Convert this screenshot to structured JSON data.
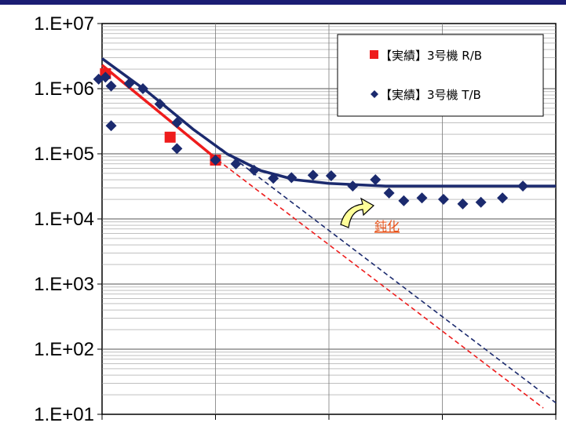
{
  "chart_data": {
    "type": "scatter",
    "title": "",
    "xlabel": "",
    "ylabel": "",
    "yscale": "log",
    "ylim": [
      10,
      10000000
    ],
    "xlim": [
      0,
      40
    ],
    "grid": true,
    "legend_position": "top-right",
    "y_tick_labels": [
      "1.E+07",
      "1.E+06",
      "1.E+05",
      "1.E+04",
      "1.E+03",
      "1.E+02",
      "1.E+01"
    ],
    "series": [
      {
        "name": "【実績】3号機 R/B",
        "marker": "square",
        "color": "#ee1c1c",
        "points": [
          {
            "x": 0.3,
            "y": 1700000
          },
          {
            "x": 6,
            "y": 180000
          },
          {
            "x": 10,
            "y": 80000
          }
        ]
      },
      {
        "name": "【実績】3号機 T/B",
        "marker": "diamond",
        "color": "#1b2a6e",
        "points": [
          {
            "x": -0.3,
            "y": 1400000
          },
          {
            "x": 0.3,
            "y": 1500000
          },
          {
            "x": 0.8,
            "y": 1100000
          },
          {
            "x": 0.8,
            "y": 270000
          },
          {
            "x": 2.4,
            "y": 1200000
          },
          {
            "x": 3.6,
            "y": 1000000
          },
          {
            "x": 5.1,
            "y": 580000
          },
          {
            "x": 6.6,
            "y": 300000
          },
          {
            "x": 6.6,
            "y": 120000
          },
          {
            "x": 10.0,
            "y": 80000
          },
          {
            "x": 11.8,
            "y": 70000
          },
          {
            "x": 13.4,
            "y": 56000
          },
          {
            "x": 15.1,
            "y": 42000
          },
          {
            "x": 16.7,
            "y": 43000
          },
          {
            "x": 18.6,
            "y": 47000
          },
          {
            "x": 20.2,
            "y": 46000
          },
          {
            "x": 22.1,
            "y": 32000
          },
          {
            "x": 24.1,
            "y": 40000
          },
          {
            "x": 25.3,
            "y": 25000
          },
          {
            "x": 26.6,
            "y": 19000
          },
          {
            "x": 28.2,
            "y": 21000
          },
          {
            "x": 30.1,
            "y": 20000
          },
          {
            "x": 31.8,
            "y": 17000
          },
          {
            "x": 33.4,
            "y": 18000
          },
          {
            "x": 35.3,
            "y": 21000
          },
          {
            "x": 37.1,
            "y": 32000
          }
        ]
      }
    ],
    "lines": [
      {
        "style": "solid",
        "color": "#ee1c1c",
        "points": [
          {
            "x": 0,
            "y": 2300000
          },
          {
            "x": 10.2,
            "y": 80000
          }
        ]
      },
      {
        "style": "dashed",
        "color": "#ee1c1c",
        "points": [
          {
            "x": 10.2,
            "y": 80000
          },
          {
            "x": 38.9,
            "y": 12.5
          }
        ]
      },
      {
        "style": "solid",
        "color": "#1b2a6e",
        "points": [
          {
            "x": 0,
            "y": 2900000
          },
          {
            "x": 4,
            "y": 900000
          },
          {
            "x": 8,
            "y": 240000
          },
          {
            "x": 11,
            "y": 100000
          },
          {
            "x": 14,
            "y": 55000
          },
          {
            "x": 17,
            "y": 40000
          },
          {
            "x": 20,
            "y": 35000
          },
          {
            "x": 25,
            "y": 32000
          },
          {
            "x": 40,
            "y": 32000
          }
        ]
      },
      {
        "style": "dashed",
        "color": "#1b2a6e",
        "points": [
          {
            "x": 10.5,
            "y": 120000
          },
          {
            "x": 40,
            "y": 15
          }
        ]
      }
    ],
    "annotations": [
      {
        "text": "鈍化",
        "x": 25,
        "y": 6500
      }
    ]
  }
}
